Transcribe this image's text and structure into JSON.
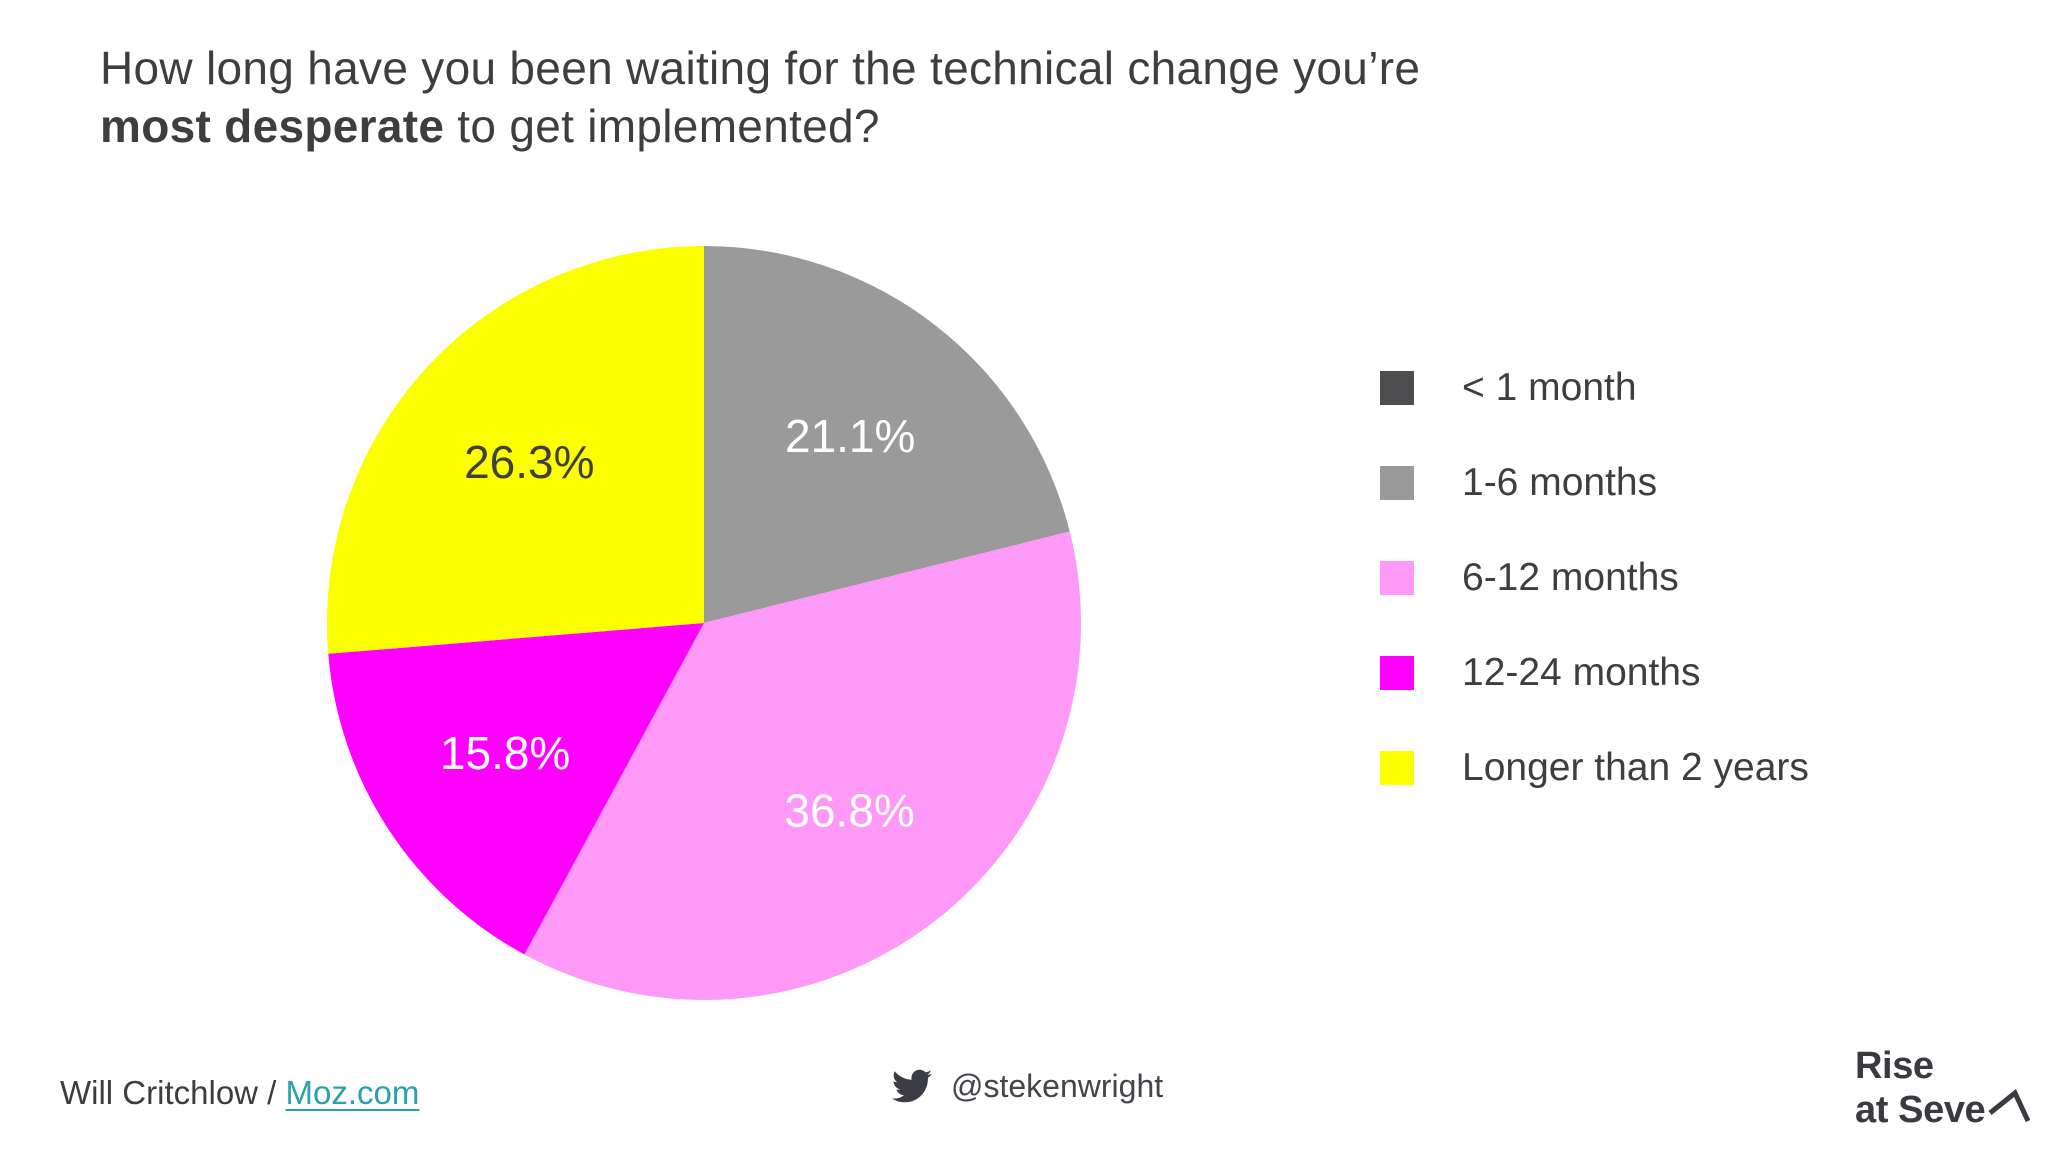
{
  "title": {
    "line1": "How long have you been waiting for the technical change you’re",
    "line2_bold": "most desperate",
    "line2_rest": " to get implemented?"
  },
  "chart_data": {
    "type": "pie",
    "title": "How long have you been waiting for the technical change you’re most desperate to get implemented?",
    "start_angle_deg": 0,
    "direction": "clockwise",
    "legend_position": "right",
    "label_radius_ratio": 0.63,
    "slices": [
      {
        "label": "< 1 month",
        "value": 0,
        "display": "",
        "color": "#4d4d4f",
        "label_color": "#ffffff"
      },
      {
        "label": "1-6 months",
        "value": 21.1,
        "display": "21.1%",
        "color": "#9b9a9b",
        "label_color": "#ffffff"
      },
      {
        "label": "6-12 months",
        "value": 36.8,
        "display": "36.8%",
        "color": "#ff99f8",
        "label_color": "#ffffff"
      },
      {
        "label": "12-24 months",
        "value": 15.8,
        "display": "15.8%",
        "color": "#ff00ff",
        "label_color": "#ffffff"
      },
      {
        "label": "Longer than 2 years",
        "value": 26.3,
        "display": "26.3%",
        "color": "#fcff00",
        "label_color": "#404040"
      }
    ]
  },
  "footer": {
    "credit_text": "Will Critchlow / ",
    "credit_link": "Moz.com",
    "twitter_icon": "twitter-bird-icon",
    "twitter_handle": "@stekenwright",
    "logo": {
      "line1": "Rise",
      "line2": "at Seve",
      "stylized_letter": "n"
    }
  },
  "colors": {
    "background": "#ffffff",
    "text": "#3e3e3e",
    "link": "#2ba1ab"
  }
}
